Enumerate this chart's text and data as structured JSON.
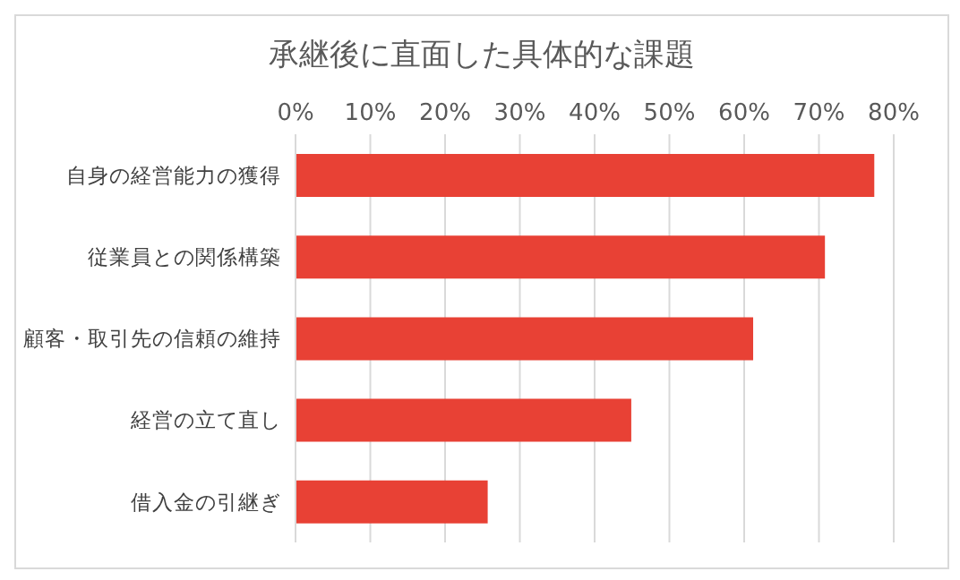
{
  "chart_data": {
    "type": "bar",
    "orientation": "horizontal",
    "title": "承継後に直面した具体的な課題",
    "categories": [
      "自身の経営能力の獲得",
      "従業員との関係構築",
      "顧客・取引先の信頼の維持",
      "経営の立て直し",
      "借入金の引継ぎ"
    ],
    "values": [
      77.4,
      70.8,
      61.2,
      44.9,
      25.7
    ],
    "color": "#e84135",
    "xlim": [
      0,
      80
    ],
    "xticks": [
      {
        "value": 0,
        "label": "0%"
      },
      {
        "value": 10,
        "label": "10%"
      },
      {
        "value": 20,
        "label": "20%"
      },
      {
        "value": 30,
        "label": "30%"
      },
      {
        "value": 40,
        "label": "40%"
      },
      {
        "value": 50,
        "label": "50%"
      },
      {
        "value": 60,
        "label": "60%"
      },
      {
        "value": 70,
        "label": "70%"
      },
      {
        "value": 80,
        "label": "80%"
      }
    ],
    "grid": "x"
  }
}
